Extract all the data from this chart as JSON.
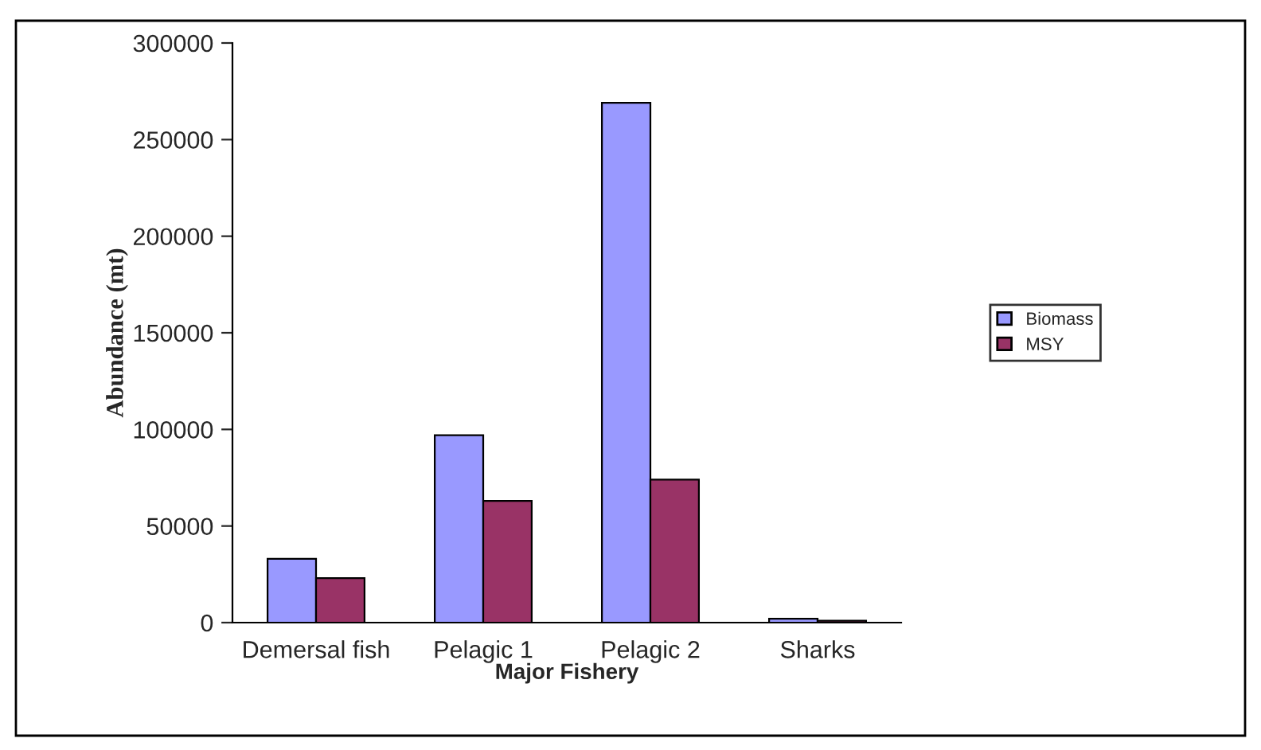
{
  "chart_data": {
    "type": "bar",
    "xlabel": "Major Fishery",
    "ylabel": "Abundance (mt)",
    "categories": [
      "Demersal fish",
      "Pelagic 1",
      "Pelagic 2",
      "Sharks"
    ],
    "series": [
      {
        "name": "Biomass",
        "color": "#9999ff",
        "values": [
          33000,
          97000,
          269000,
          2000
        ]
      },
      {
        "name": "MSY",
        "color": "#993366",
        "values": [
          23000,
          63000,
          74000,
          1000
        ]
      }
    ],
    "ylim": [
      0,
      300000
    ],
    "yticks": [
      0,
      50000,
      100000,
      150000,
      200000,
      250000,
      300000
    ],
    "grid": false,
    "legend": "right"
  }
}
